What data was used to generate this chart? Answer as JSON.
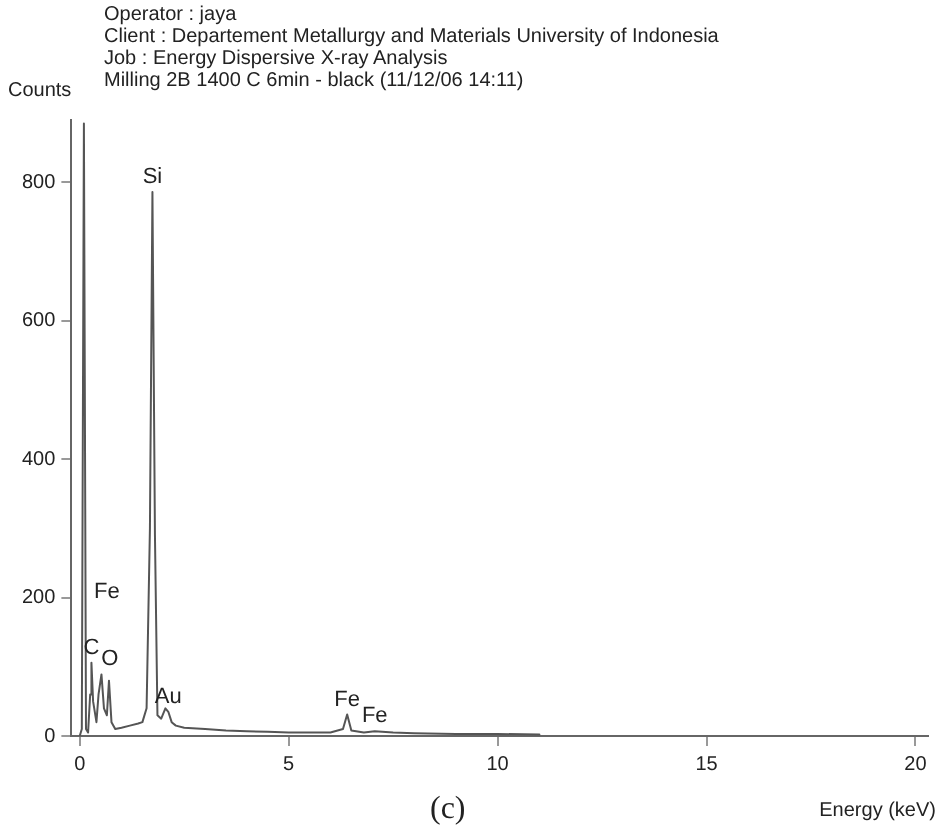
{
  "chart_data": {
    "type": "line",
    "title": "Operator : jaya",
    "subtitle": "Client : Departement Metallurgy and Materials University of Indonesia",
    "xlabel": "Energy (keV)",
    "ylabel": "Counts",
    "annotations": [
      "Job : Energy Dispersive X-ray Analysis",
      "Milling 2B 1400 C 6min - black (11/12/06 14:11)",
      "(c)",
      "Fe",
      {
        "text": "Si",
        "x": 1.74,
        "y": 786
      },
      {
        "text": "C",
        "x": 0.28,
        "y": 106
      },
      {
        "text": "O",
        "x": 0.52,
        "y": 89
      },
      {
        "text": "Au",
        "x": 2.12,
        "y": 35
      },
      {
        "text": "Fe",
        "x": 6.4,
        "y": 31
      },
      {
        "text": "Fe",
        "x": 7.06,
        "y": 7
      }
    ],
    "series": [
      {
        "color": "#555555",
        "x": [
          0,
          0.05,
          0.1,
          0.15,
          0.2,
          0.25,
          0.28,
          0.32,
          0.4,
          0.45,
          0.52,
          0.58,
          0.65,
          0.7,
          0.76,
          0.85,
          1.0,
          1.2,
          1.4,
          1.5,
          1.6,
          1.68,
          1.74,
          1.8,
          1.86,
          1.95,
          2.05,
          2.12,
          2.2,
          2.3,
          2.5,
          3,
          3.5,
          4,
          4.5,
          5,
          5.5,
          6,
          6.3,
          6.4,
          6.5,
          6.8,
          7.06,
          7.5,
          8,
          9,
          10,
          11
        ],
        "values": [
          0,
          10,
          885,
          10,
          5,
          60,
          106,
          50,
          20,
          60,
          89,
          40,
          30,
          80,
          20,
          10,
          12,
          15,
          18,
          20,
          40,
          300,
          786,
          290,
          30,
          25,
          40,
          35,
          20,
          15,
          12,
          10,
          8,
          7,
          6,
          5,
          5,
          5,
          10,
          31,
          8,
          5,
          7,
          5,
          4,
          3,
          3,
          2
        ]
      }
    ],
    "xlim": [
      -0.2,
      20.3
    ],
    "ylim": [
      0,
      890
    ],
    "xticks": [
      0,
      5,
      10,
      15,
      20
    ],
    "yticks": [
      0,
      200,
      400,
      600,
      800
    ],
    "grid": false,
    "legend": false,
    "marker": "none",
    "line_style": "solid"
  }
}
